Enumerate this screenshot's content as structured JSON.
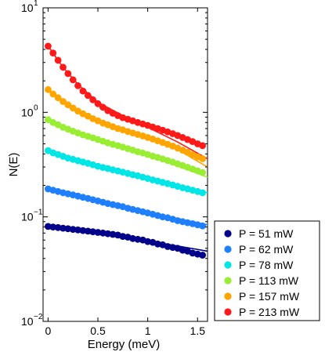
{
  "chart_data": {
    "type": "scatter",
    "title": "",
    "xlabel": "Energy (meV)",
    "ylabel": "N(E)",
    "xlim": [
      -0.05,
      1.6
    ],
    "ylim": [
      0.01,
      10
    ],
    "yscale": "log",
    "grid": false,
    "legend_position": "bottom-right outside",
    "x_ticks": [
      {
        "value": 0,
        "label": "0"
      },
      {
        "value": 0.5,
        "label": "0.5"
      },
      {
        "value": 1,
        "label": "1"
      },
      {
        "value": 1.5,
        "label": "1.5"
      }
    ],
    "y_ticks": [
      {
        "value": 0.01,
        "base": "10",
        "exp": "−2"
      },
      {
        "value": 0.1,
        "base": "10",
        "exp": "−1"
      },
      {
        "value": 1,
        "base": "10",
        "exp": "0"
      },
      {
        "value": 10,
        "base": "10",
        "exp": "1"
      }
    ],
    "series": [
      {
        "name": "P = 51 mW",
        "color": "#00008b",
        "x": [
          0,
          0.05,
          0.1,
          0.15,
          0.2,
          0.25,
          0.3,
          0.35,
          0.4,
          0.45,
          0.5,
          0.55,
          0.6,
          0.65,
          0.7,
          0.75,
          0.8,
          0.85,
          0.9,
          0.95,
          1.0,
          1.05,
          1.1,
          1.15,
          1.2,
          1.25,
          1.3,
          1.35,
          1.4,
          1.45,
          1.5,
          1.55
        ],
        "y": [
          0.081,
          0.08,
          0.079,
          0.078,
          0.077,
          0.076,
          0.075,
          0.074,
          0.073,
          0.072,
          0.071,
          0.07,
          0.069,
          0.068,
          0.067,
          0.065,
          0.064,
          0.062,
          0.061,
          0.06,
          0.058,
          0.057,
          0.055,
          0.054,
          0.052,
          0.051,
          0.05,
          0.048,
          0.047,
          0.045,
          0.044,
          0.043
        ],
        "fit": {
          "x": [
            0,
            0.5,
            1.6
          ],
          "y": [
            0.081,
            0.071,
            0.047
          ]
        }
      },
      {
        "name": "P = 62 mW",
        "color": "#1e7fff",
        "x": [
          0,
          0.05,
          0.1,
          0.15,
          0.2,
          0.25,
          0.3,
          0.35,
          0.4,
          0.45,
          0.5,
          0.55,
          0.6,
          0.65,
          0.7,
          0.75,
          0.8,
          0.85,
          0.9,
          0.95,
          1.0,
          1.05,
          1.1,
          1.15,
          1.2,
          1.25,
          1.3,
          1.35,
          1.4,
          1.45,
          1.5,
          1.55
        ],
        "y": [
          0.185,
          0.18,
          0.175,
          0.17,
          0.166,
          0.162,
          0.158,
          0.154,
          0.15,
          0.146,
          0.142,
          0.138,
          0.134,
          0.131,
          0.128,
          0.125,
          0.121,
          0.118,
          0.115,
          0.112,
          0.109,
          0.106,
          0.103,
          0.1,
          0.098,
          0.095,
          0.092,
          0.09,
          0.088,
          0.086,
          0.084,
          0.082
        ],
        "fit": {
          "x": [
            0,
            0.5,
            1.0,
            1.6
          ],
          "y": [
            0.185,
            0.142,
            0.11,
            0.084
          ]
        }
      },
      {
        "name": "P = 78 mW",
        "color": "#00e6e6",
        "x": [
          0,
          0.05,
          0.1,
          0.15,
          0.2,
          0.25,
          0.3,
          0.35,
          0.4,
          0.45,
          0.5,
          0.55,
          0.6,
          0.65,
          0.7,
          0.75,
          0.8,
          0.85,
          0.9,
          0.95,
          1.0,
          1.05,
          1.1,
          1.15,
          1.2,
          1.25,
          1.3,
          1.35,
          1.4,
          1.45,
          1.5,
          1.55
        ],
        "y": [
          0.43,
          0.41,
          0.395,
          0.38,
          0.365,
          0.355,
          0.345,
          0.335,
          0.325,
          0.315,
          0.305,
          0.297,
          0.29,
          0.282,
          0.275,
          0.268,
          0.26,
          0.253,
          0.247,
          0.24,
          0.233,
          0.226,
          0.22,
          0.214,
          0.208,
          0.202,
          0.196,
          0.19,
          0.185,
          0.18,
          0.175,
          0.17
        ],
        "fit": {
          "x": [
            0,
            0.5,
            1.0,
            1.6
          ],
          "y": [
            0.43,
            0.305,
            0.235,
            0.17
          ]
        }
      },
      {
        "name": "P = 113 mW",
        "color": "#99ee33",
        "x": [
          0,
          0.05,
          0.1,
          0.15,
          0.2,
          0.25,
          0.3,
          0.35,
          0.4,
          0.45,
          0.5,
          0.55,
          0.6,
          0.65,
          0.7,
          0.75,
          0.8,
          0.85,
          0.9,
          0.95,
          1.0,
          1.05,
          1.1,
          1.15,
          1.2,
          1.25,
          1.3,
          1.35,
          1.4,
          1.45,
          1.5,
          1.55
        ],
        "y": [
          0.85,
          0.8,
          0.76,
          0.72,
          0.69,
          0.66,
          0.635,
          0.61,
          0.59,
          0.57,
          0.55,
          0.53,
          0.51,
          0.495,
          0.48,
          0.465,
          0.45,
          0.435,
          0.42,
          0.408,
          0.395,
          0.382,
          0.37,
          0.358,
          0.346,
          0.334,
          0.322,
          0.31,
          0.298,
          0.287,
          0.276,
          0.265
        ],
        "fit": {
          "x": [
            0,
            0.3,
            0.6,
            1.0,
            1.6
          ],
          "y": [
            0.85,
            0.635,
            0.51,
            0.39,
            0.24
          ]
        }
      },
      {
        "name": "P = 157 mW",
        "color": "#ffa500",
        "x": [
          0,
          0.05,
          0.1,
          0.15,
          0.2,
          0.25,
          0.3,
          0.35,
          0.4,
          0.45,
          0.5,
          0.55,
          0.6,
          0.65,
          0.7,
          0.75,
          0.8,
          0.85,
          0.9,
          0.95,
          1.0,
          1.05,
          1.1,
          1.15,
          1.2,
          1.25,
          1.3,
          1.35,
          1.4,
          1.45,
          1.5,
          1.55
        ],
        "y": [
          1.65,
          1.5,
          1.38,
          1.27,
          1.18,
          1.1,
          1.03,
          0.97,
          0.92,
          0.87,
          0.83,
          0.79,
          0.76,
          0.73,
          0.7,
          0.68,
          0.655,
          0.635,
          0.615,
          0.595,
          0.575,
          0.555,
          0.535,
          0.515,
          0.495,
          0.475,
          0.455,
          0.435,
          0.415,
          0.395,
          0.375,
          0.36
        ],
        "fit": {
          "x": [
            0,
            0.3,
            0.6,
            1.0,
            1.3,
            1.6
          ],
          "y": [
            1.65,
            1.02,
            0.76,
            0.56,
            0.44,
            0.3
          ]
        }
      },
      {
        "name": "P = 213 mW",
        "color": "#ff1a1a",
        "x": [
          0,
          0.05,
          0.1,
          0.15,
          0.2,
          0.25,
          0.3,
          0.35,
          0.4,
          0.45,
          0.5,
          0.55,
          0.6,
          0.65,
          0.7,
          0.75,
          0.8,
          0.85,
          0.9,
          0.95,
          1.0,
          1.05,
          1.1,
          1.15,
          1.2,
          1.25,
          1.3,
          1.35,
          1.4,
          1.45,
          1.5,
          1.55
        ],
        "y": [
          4.3,
          3.7,
          3.15,
          2.7,
          2.35,
          2.05,
          1.8,
          1.6,
          1.45,
          1.32,
          1.21,
          1.12,
          1.04,
          0.98,
          0.93,
          0.89,
          0.86,
          0.83,
          0.8,
          0.775,
          0.75,
          0.725,
          0.7,
          0.675,
          0.65,
          0.625,
          0.6,
          0.575,
          0.55,
          0.525,
          0.5,
          0.48
        ],
        "fit": {
          "x": [
            0,
            0.15,
            0.3,
            0.5,
            0.75,
            1.0,
            1.3,
            1.6
          ],
          "y": [
            4.3,
            2.7,
            1.85,
            1.25,
            0.93,
            0.72,
            0.52,
            0.36
          ]
        }
      }
    ]
  }
}
